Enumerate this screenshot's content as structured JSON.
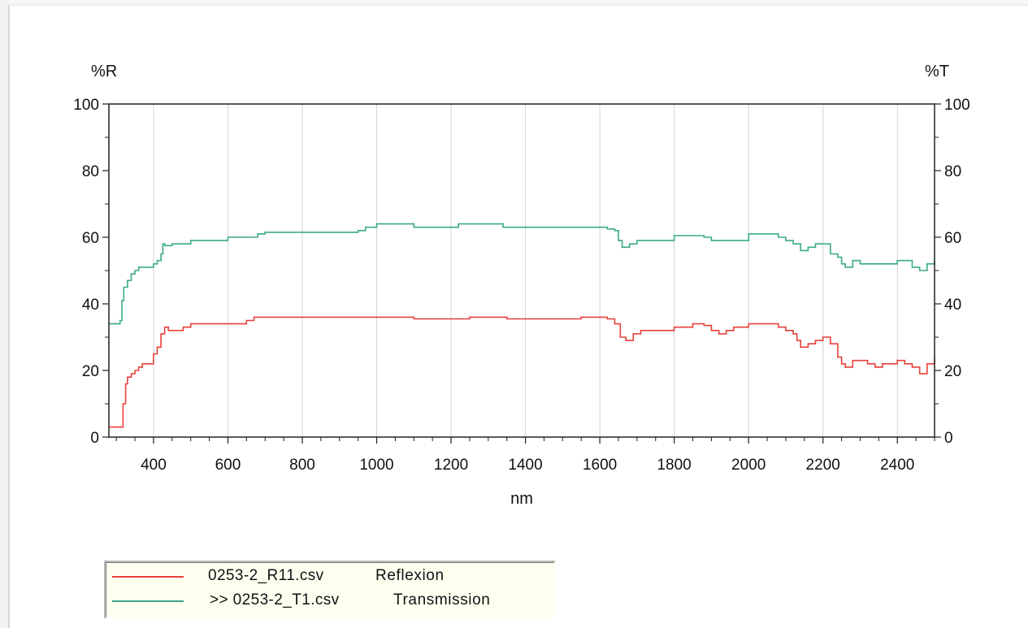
{
  "chart_data": {
    "type": "line",
    "title": "",
    "ylabel_left": "%R",
    "ylabel_right": "%T",
    "xlabel": "nm",
    "xlim": [
      280,
      2500
    ],
    "ylim": [
      0,
      100
    ],
    "x_ticks": [
      400,
      600,
      800,
      1000,
      1200,
      1400,
      1600,
      1800,
      2000,
      2200,
      2400
    ],
    "y_ticks": [
      0,
      20,
      40,
      60,
      80,
      100
    ],
    "grid": true,
    "legend": "bottom-left",
    "series": [
      {
        "name": "Reflexion",
        "file": "0253-2_R11.csv",
        "axis": "left",
        "color": "#e8403a",
        "x": [
          280,
          310,
          318,
          325,
          330,
          340,
          350,
          360,
          370,
          385,
          400,
          410,
          420,
          430,
          440,
          460,
          480,
          500,
          550,
          600,
          650,
          670,
          700,
          800,
          900,
          1000,
          1050,
          1100,
          1150,
          1200,
          1250,
          1300,
          1330,
          1350,
          1400,
          1450,
          1500,
          1550,
          1600,
          1620,
          1640,
          1655,
          1670,
          1690,
          1710,
          1750,
          1800,
          1850,
          1880,
          1900,
          1920,
          1940,
          1960,
          1980,
          2000,
          2050,
          2080,
          2100,
          2120,
          2130,
          2140,
          2160,
          2180,
          2200,
          2220,
          2240,
          2250,
          2260,
          2280,
          2300,
          2320,
          2340,
          2360,
          2380,
          2400,
          2420,
          2440,
          2460,
          2480,
          2500
        ],
        "y": [
          3,
          3,
          10,
          16,
          18,
          19,
          20,
          21,
          22,
          22,
          25,
          27,
          31,
          33,
          32,
          32,
          33,
          34,
          34,
          34,
          35,
          36,
          36,
          36,
          36,
          36,
          36,
          35.5,
          35.5,
          35.5,
          36,
          36,
          36,
          35.5,
          35.5,
          35.5,
          35.5,
          36,
          36,
          35.5,
          34,
          30,
          29,
          31,
          32,
          32,
          33,
          34,
          33.5,
          32,
          31,
          32,
          33,
          33,
          34,
          34,
          33,
          32,
          31,
          29,
          27,
          28,
          29,
          30,
          28,
          24,
          22,
          21,
          23,
          23,
          22,
          21,
          22,
          22,
          23,
          22,
          21,
          19,
          22,
          24
        ]
      },
      {
        "name": "Transmission",
        "file": ">> 0253-2_T1.csv",
        "axis": "right",
        "color": "#3aa98a",
        "x": [
          280,
          300,
          310,
          315,
          320,
          330,
          340,
          350,
          360,
          380,
          400,
          410,
          420,
          425,
          430,
          450,
          500,
          550,
          600,
          650,
          680,
          700,
          800,
          900,
          950,
          970,
          1000,
          1050,
          1100,
          1150,
          1200,
          1220,
          1300,
          1340,
          1400,
          1500,
          1600,
          1620,
          1640,
          1650,
          1660,
          1680,
          1700,
          1750,
          1800,
          1850,
          1880,
          1900,
          1950,
          2000,
          2050,
          2080,
          2100,
          2120,
          2140,
          2160,
          2180,
          2200,
          2220,
          2240,
          2250,
          2260,
          2280,
          2300,
          2350,
          2380,
          2400,
          2420,
          2440,
          2460,
          2480,
          2500
        ],
        "y": [
          34,
          34,
          35,
          41,
          45,
          47,
          49,
          50,
          51,
          51,
          52,
          53,
          55,
          58,
          57.5,
          58,
          59,
          59,
          60,
          60,
          61,
          61.5,
          61.5,
          61.5,
          62,
          63,
          64,
          64,
          63,
          63,
          63,
          64,
          64,
          63,
          63,
          63,
          63,
          62.5,
          62,
          59,
          57,
          58,
          59,
          59,
          60.5,
          60.5,
          60,
          59,
          59,
          61,
          61,
          60,
          59,
          58,
          56,
          57,
          58,
          58,
          55,
          54,
          52,
          51,
          53,
          52,
          52,
          52,
          53,
          53,
          51,
          50,
          52,
          53
        ]
      }
    ]
  }
}
